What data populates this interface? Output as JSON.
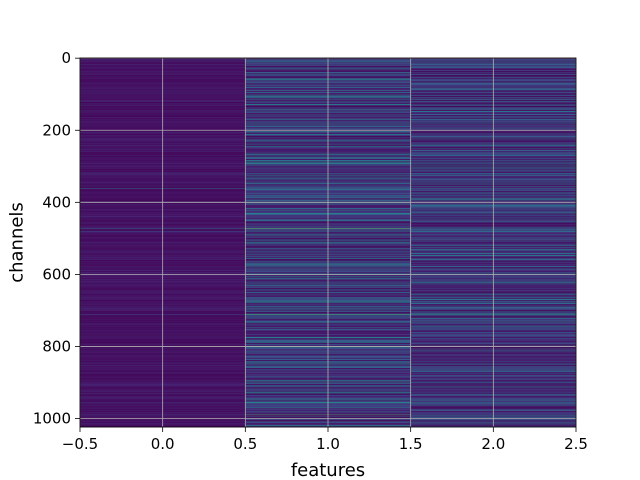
{
  "chart_data": {
    "type": "heatmap",
    "title": "",
    "xlabel": "features",
    "ylabel": "channels",
    "xlim": [
      -0.5,
      2.5
    ],
    "ylim": [
      1023.5,
      -0.5
    ],
    "xticks": [
      -0.5,
      0.0,
      0.5,
      1.0,
      1.5,
      2.0,
      2.5
    ],
    "xtick_labels": [
      "−0.5",
      "0.0",
      "0.5",
      "1.0",
      "1.5",
      "2.0",
      "2.5"
    ],
    "yticks": [
      0,
      200,
      400,
      600,
      800,
      1000
    ],
    "ytick_labels": [
      "0",
      "200",
      "400",
      "600",
      "800",
      "1000"
    ],
    "rows": 1024,
    "columns": [
      0,
      1,
      2
    ],
    "colormap": "viridis",
    "grid": true,
    "grid_color": "#b0b0b0",
    "column_value_ranges": [
      [
        0.02,
        0.12
      ],
      [
        0.03,
        0.52
      ],
      [
        0.02,
        0.45
      ]
    ],
    "highlight_rows": [
      {
        "row": 362,
        "values": [
          0.45,
          0.5,
          0.4
        ]
      },
      {
        "row": 472,
        "values": [
          0.4,
          0.78,
          0.4
        ]
      },
      {
        "row": 480,
        "values": [
          0.3,
          0.45,
          0.38
        ]
      },
      {
        "row": 712,
        "values": [
          0.25,
          0.72,
          0.55
        ]
      },
      {
        "row": 800,
        "values": [
          0.35,
          0.5,
          0.45
        ]
      },
      {
        "row": 955,
        "values": [
          0.2,
          0.6,
          0.5
        ]
      },
      {
        "row": 990,
        "values": [
          0.2,
          0.75,
          0.3
        ]
      }
    ]
  }
}
